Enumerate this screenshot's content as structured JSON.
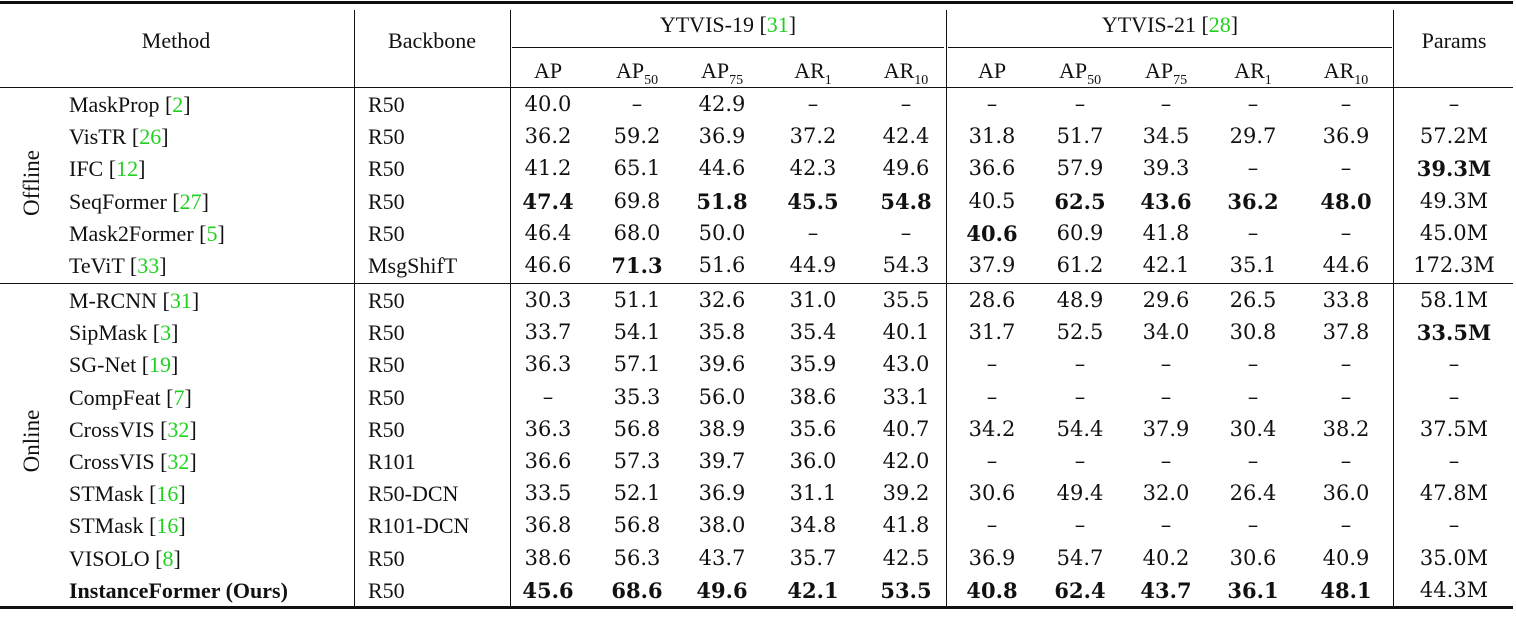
{
  "table": {
    "headers": {
      "method": "Method",
      "backbone": "Backbone",
      "ytvis19": {
        "label": "YTVIS-19 [",
        "ref": "31",
        "close": "]"
      },
      "ytvis21": {
        "label": "YTVIS-21 [",
        "ref": "28",
        "close": "]"
      },
      "params": "Params",
      "metrics": [
        {
          "base": "AP",
          "sub": ""
        },
        {
          "base": "AP",
          "sub": "50"
        },
        {
          "base": "AP",
          "sub": "75"
        },
        {
          "base": "AR",
          "sub": "1"
        },
        {
          "base": "AR",
          "sub": "10"
        }
      ]
    },
    "groups": [
      {
        "label": "Offline",
        "rows": [
          {
            "method": "MaskProp",
            "ref": "2",
            "backbone": "R50",
            "y19": [
              "40.0",
              "–",
              "42.9",
              "–",
              "–"
            ],
            "y21": [
              "–",
              "–",
              "–",
              "–",
              "–"
            ],
            "params": "–"
          },
          {
            "method": "VisTR",
            "ref": "26",
            "backbone": "R50",
            "y19": [
              "36.2",
              "59.2",
              "36.9",
              "37.2",
              "42.4"
            ],
            "y21": [
              "31.8",
              "51.7",
              "34.5",
              "29.7",
              "36.9"
            ],
            "params": "57.2M"
          },
          {
            "method": "IFC",
            "ref": "12",
            "backbone": "R50",
            "y19": [
              "41.2",
              "65.1",
              "44.6",
              "42.3",
              "49.6"
            ],
            "y21": [
              "36.6",
              "57.9",
              "39.3",
              "–",
              "–"
            ],
            "params": "39.3M"
          },
          {
            "method": "SeqFormer",
            "ref": "27",
            "backbone": "R50",
            "y19": [
              "47.4",
              "69.8",
              "51.8",
              "45.5",
              "54.8"
            ],
            "y21": [
              "40.5",
              "62.5",
              "43.6",
              "36.2",
              "48.0"
            ],
            "params": "49.3M"
          },
          {
            "method": "Mask2Former",
            "ref": "5",
            "backbone": "R50",
            "y19": [
              "46.4",
              "68.0",
              "50.0",
              "–",
              "–"
            ],
            "y21": [
              "40.6",
              "60.9",
              "41.8",
              "–",
              "–"
            ],
            "params": "45.0M"
          },
          {
            "method": "TeViT",
            "ref": "33",
            "backbone": "MsgShifT",
            "y19": [
              "46.6",
              "71.3",
              "51.6",
              "44.9",
              "54.3"
            ],
            "y21": [
              "37.9",
              "61.2",
              "42.1",
              "35.1",
              "44.6"
            ],
            "params": "172.3M"
          }
        ]
      },
      {
        "label": "Online",
        "rows": [
          {
            "method": "M-RCNN",
            "ref": "31",
            "backbone": "R50",
            "y19": [
              "30.3",
              "51.1",
              "32.6",
              "31.0",
              "35.5"
            ],
            "y21": [
              "28.6",
              "48.9",
              "29.6",
              "26.5",
              "33.8"
            ],
            "params": "58.1M"
          },
          {
            "method": "SipMask",
            "ref": "3",
            "backbone": "R50",
            "y19": [
              "33.7",
              "54.1",
              "35.8",
              "35.4",
              "40.1"
            ],
            "y21": [
              "31.7",
              "52.5",
              "34.0",
              "30.8",
              "37.8"
            ],
            "params": "33.5M"
          },
          {
            "method": "SG-Net",
            "ref": "19",
            "backbone": "R50",
            "y19": [
              "36.3",
              "57.1",
              "39.6",
              "35.9",
              "43.0"
            ],
            "y21": [
              "–",
              "–",
              "–",
              "–",
              "–"
            ],
            "params": "–"
          },
          {
            "method": "CompFeat",
            "ref": "7",
            "backbone": "R50",
            "y19": [
              "–",
              "35.3",
              "56.0",
              "38.6",
              "33.1"
            ],
            "y21": [
              "–",
              "–",
              "–",
              "–",
              "–"
            ],
            "params": "–"
          },
          {
            "method": "CrossVIS",
            "ref": "32",
            "backbone": "R50",
            "y19": [
              "36.3",
              "56.8",
              "38.9",
              "35.6",
              "40.7"
            ],
            "y21": [
              "34.2",
              "54.4",
              "37.9",
              "30.4",
              "38.2"
            ],
            "params": "37.5M"
          },
          {
            "method": "CrossVIS",
            "ref": "32",
            "backbone": "R101",
            "y19": [
              "36.6",
              "57.3",
              "39.7",
              "36.0",
              "42.0"
            ],
            "y21": [
              "–",
              "–",
              "–",
              "–",
              "–"
            ],
            "params": "–"
          },
          {
            "method": "STMask",
            "ref": "16",
            "backbone": "R50-DCN",
            "y19": [
              "33.5",
              "52.1",
              "36.9",
              "31.1",
              "39.2"
            ],
            "y21": [
              "30.6",
              "49.4",
              "32.0",
              "26.4",
              "36.0"
            ],
            "params": "47.8M"
          },
          {
            "method": "STMask",
            "ref": "16",
            "backbone": "R101-DCN",
            "y19": [
              "36.8",
              "56.8",
              "38.0",
              "34.8",
              "41.8"
            ],
            "y21": [
              "–",
              "–",
              "–",
              "–",
              "–"
            ],
            "params": "–"
          },
          {
            "method": "VISOLO",
            "ref": "8",
            "backbone": "R50",
            "y19": [
              "38.6",
              "56.3",
              "43.7",
              "35.7",
              "42.5"
            ],
            "y21": [
              "36.9",
              "54.7",
              "40.2",
              "30.6",
              "40.9"
            ],
            "params": "35.0M"
          },
          {
            "method": "InstanceFormer (Ours)",
            "ref": "",
            "backbone": "R50",
            "y19": [
              "45.6",
              "68.6",
              "49.6",
              "42.1",
              "53.5"
            ],
            "y21": [
              "40.8",
              "62.4",
              "43.7",
              "36.1",
              "48.1"
            ],
            "params": "44.3M"
          }
        ]
      }
    ],
    "bold_cells": {
      "Offline": {
        "2": {
          "params": true
        },
        "3": {
          "y19": [
            0,
            2,
            3,
            4
          ],
          "y21": [
            1,
            2,
            3,
            4
          ]
        },
        "4": {
          "y21": [
            0
          ]
        },
        "5": {
          "y19": [
            1
          ]
        }
      },
      "Online": {
        "1": {
          "params": true
        },
        "9": {
          "method": true,
          "y19": [
            0,
            1,
            2,
            3,
            4
          ],
          "y21": [
            0,
            1,
            2,
            3,
            4
          ]
        }
      }
    },
    "colors": {
      "reference": "#1fd11f",
      "text": "#111111",
      "rule": "#111111"
    }
  }
}
